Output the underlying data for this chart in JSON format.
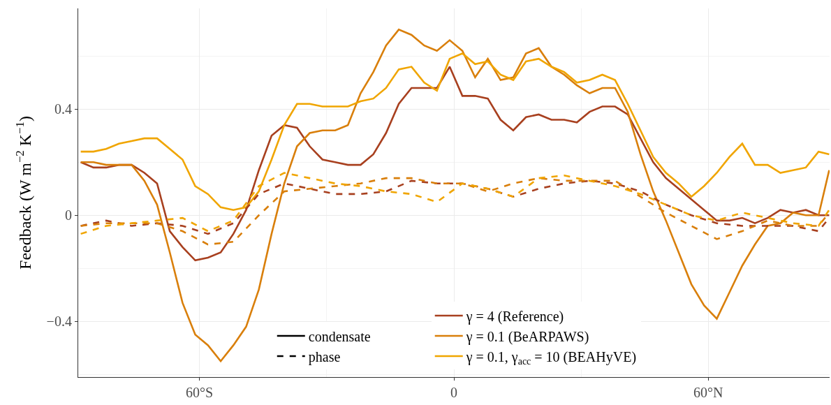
{
  "chart_data": {
    "type": "line",
    "ylabel": "Feedback (W m$^{−2}$ K$^{−1}$)",
    "xlim": [
      -88.6,
      88.6
    ],
    "ylim": [
      -0.61,
      0.78
    ],
    "xticks": [
      {
        "value": -60,
        "label": "60°S"
      },
      0,
      {
        "value": 60,
        "label": "60°N"
      }
    ],
    "yticks": [
      {
        "value": -0.4,
        "label": "−0.4"
      },
      0,
      0.4
    ],
    "grid": true,
    "legend": "bottom",
    "annotations": [
      "condensate",
      "phase"
    ],
    "x": [
      -88,
      -85,
      -82,
      -79,
      -76,
      -73,
      -70,
      -67,
      -64,
      -61,
      -58,
      -55,
      -52,
      -49,
      -46,
      -43,
      -40,
      -37,
      -34,
      -31,
      -28,
      -25,
      -22,
      -19,
      -16,
      -13,
      -10,
      -7,
      -4,
      -1,
      2,
      5,
      8,
      11,
      14,
      17,
      20,
      23,
      26,
      29,
      32,
      35,
      38,
      41,
      44,
      47,
      50,
      53,
      56,
      59,
      62,
      65,
      68,
      71,
      74,
      77,
      80,
      83,
      86,
      88.5
    ],
    "series": [
      {
        "name": "γ = 4 (Reference)",
        "color": "#a8401f",
        "line_style": "solid",
        "values": [
          0.2,
          0.18,
          0.18,
          0.19,
          0.19,
          0.16,
          0.12,
          -0.06,
          -0.12,
          -0.17,
          -0.16,
          -0.14,
          -0.07,
          0.02,
          0.17,
          0.3,
          0.34,
          0.33,
          0.26,
          0.21,
          0.2,
          0.19,
          0.19,
          0.23,
          0.31,
          0.42,
          0.48,
          0.48,
          0.48,
          0.56,
          0.45,
          0.45,
          0.44,
          0.36,
          0.32,
          0.37,
          0.38,
          0.36,
          0.36,
          0.35,
          0.39,
          0.41,
          0.41,
          0.38,
          0.29,
          0.2,
          0.14,
          0.1,
          0.06,
          0.02,
          -0.02,
          -0.02,
          -0.01,
          -0.03,
          -0.01,
          0.02,
          0.01,
          0.02,
          0.0,
          0.0
        ]
      },
      {
        "name": "γ = 0.1 (BeARPAWS)",
        "color": "#d97f0b",
        "line_style": "solid",
        "values": [
          0.2,
          0.2,
          0.19,
          0.19,
          0.19,
          0.13,
          0.04,
          -0.14,
          -0.33,
          -0.45,
          -0.49,
          -0.55,
          -0.49,
          -0.42,
          -0.28,
          -0.07,
          0.12,
          0.26,
          0.31,
          0.32,
          0.32,
          0.34,
          0.46,
          0.54,
          0.64,
          0.7,
          0.68,
          0.64,
          0.62,
          0.66,
          0.62,
          0.52,
          0.59,
          0.51,
          0.52,
          0.61,
          0.63,
          0.56,
          0.53,
          0.49,
          0.46,
          0.48,
          0.48,
          0.39,
          0.23,
          0.09,
          -0.02,
          -0.14,
          -0.26,
          -0.34,
          -0.39,
          -0.29,
          -0.19,
          -0.11,
          -0.04,
          -0.03,
          0.01,
          0.0,
          0.0,
          0.17
        ]
      },
      {
        "name": "γ = 0.1, γ$_{acc}$ = 10 (BEAHyVE)",
        "color": "#f0a500",
        "line_style": "solid",
        "values": [
          0.24,
          0.24,
          0.25,
          0.27,
          0.28,
          0.29,
          0.29,
          0.25,
          0.21,
          0.11,
          0.08,
          0.03,
          0.02,
          0.03,
          0.09,
          0.21,
          0.34,
          0.42,
          0.42,
          0.41,
          0.41,
          0.41,
          0.43,
          0.44,
          0.48,
          0.55,
          0.56,
          0.5,
          0.47,
          0.59,
          0.61,
          0.57,
          0.58,
          0.53,
          0.51,
          0.58,
          0.59,
          0.56,
          0.54,
          0.5,
          0.51,
          0.53,
          0.51,
          0.42,
          0.32,
          0.22,
          0.16,
          0.12,
          0.07,
          0.11,
          0.16,
          0.22,
          0.27,
          0.19,
          0.19,
          0.16,
          0.17,
          0.18,
          0.24,
          0.23
        ]
      },
      {
        "color": "#a8401f",
        "line_style": "dashed",
        "x": [
          -88,
          -82,
          -76,
          -70,
          -64,
          -58,
          -52,
          -46,
          -40,
          -34,
          -28,
          -22,
          -16,
          -10,
          -4,
          2,
          8,
          14,
          20,
          26,
          32,
          38,
          44,
          50,
          56,
          62,
          68,
          74,
          80,
          86,
          88.5
        ],
        "values": [
          -0.04,
          -0.02,
          -0.04,
          -0.03,
          -0.04,
          -0.07,
          -0.03,
          0.08,
          0.12,
          0.1,
          0.08,
          0.08,
          0.09,
          0.13,
          0.12,
          0.12,
          0.1,
          0.07,
          0.1,
          0.12,
          0.13,
          0.12,
          0.09,
          0.04,
          0.0,
          -0.03,
          -0.04,
          -0.04,
          -0.04,
          -0.06,
          -0.01
        ]
      },
      {
        "color": "#d97f0b",
        "line_style": "dashed",
        "x": [
          -88,
          -82,
          -76,
          -70,
          -64,
          -58,
          -52,
          -46,
          -40,
          -34,
          -28,
          -22,
          -16,
          -10,
          -4,
          2,
          8,
          14,
          20,
          26,
          32,
          38,
          44,
          50,
          56,
          62,
          68,
          74,
          80,
          86,
          88.5
        ],
        "values": [
          -0.04,
          -0.03,
          -0.03,
          -0.03,
          -0.06,
          -0.11,
          -0.1,
          0.0,
          0.09,
          0.1,
          0.11,
          0.12,
          0.14,
          0.14,
          0.12,
          0.12,
          0.09,
          0.12,
          0.14,
          0.13,
          0.13,
          0.13,
          0.07,
          0.01,
          -0.04,
          -0.09,
          -0.06,
          -0.02,
          -0.04,
          -0.04,
          0.01
        ]
      },
      {
        "color": "#f0a500",
        "line_style": "dashed",
        "x": [
          -88,
          -82,
          -76,
          -70,
          -64,
          -58,
          -52,
          -46,
          -40,
          -34,
          -28,
          -22,
          -16,
          -10,
          -4,
          2,
          8,
          14,
          20,
          26,
          32,
          38,
          44,
          50,
          56,
          62,
          68,
          74,
          80,
          86,
          88.5
        ],
        "values": [
          -0.07,
          -0.04,
          -0.03,
          -0.02,
          -0.01,
          -0.06,
          -0.02,
          0.11,
          0.16,
          0.14,
          0.12,
          0.11,
          0.09,
          0.08,
          0.05,
          0.12,
          0.1,
          0.07,
          0.14,
          0.15,
          0.13,
          0.11,
          0.08,
          0.04,
          0.0,
          -0.02,
          0.01,
          -0.01,
          -0.03,
          -0.04,
          0.02
        ]
      }
    ]
  }
}
